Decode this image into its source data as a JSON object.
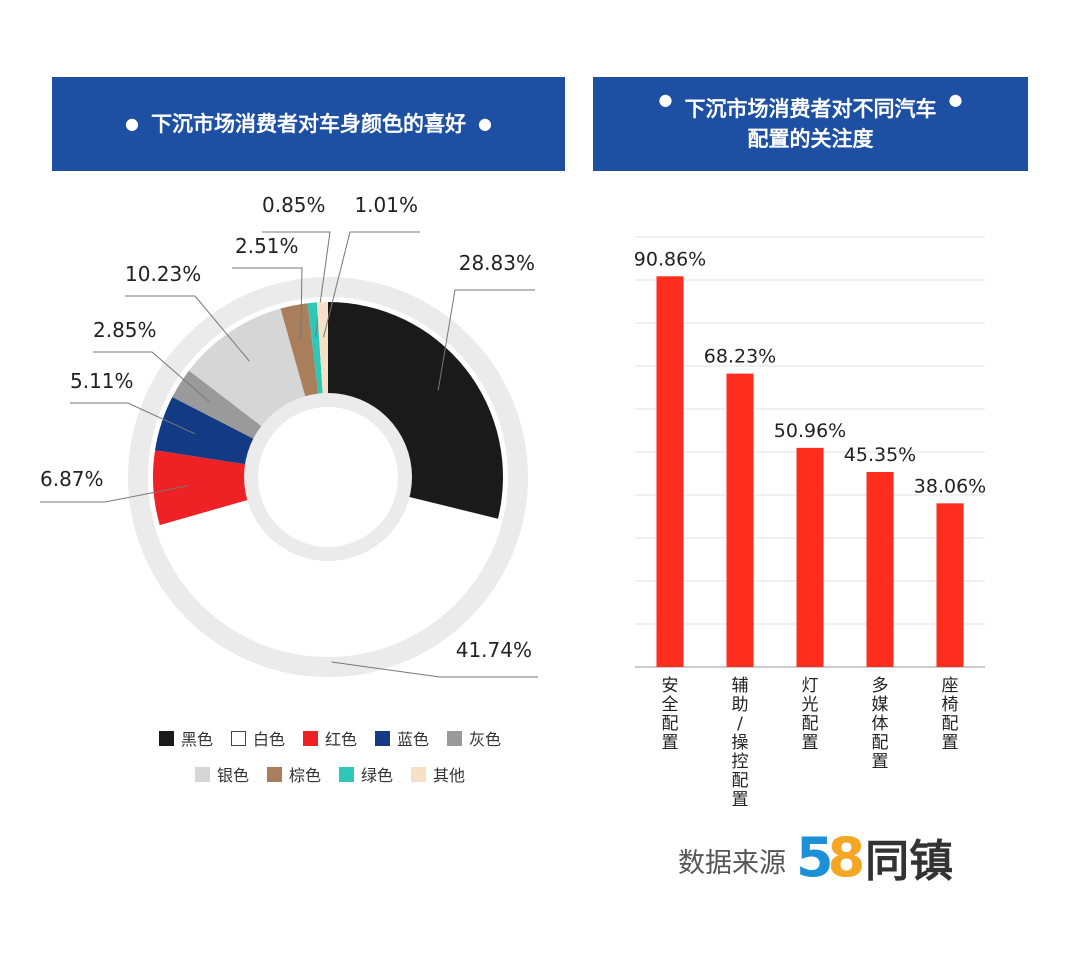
{
  "colors": {
    "banner": "#1d4fa3",
    "bar": "#ff2d1e"
  },
  "left_panel": {
    "title": "下沉市场消费者对车身颜色的喜好",
    "bullet": "●"
  },
  "right_panel": {
    "title_line1": "下沉市场消费者对不同汽车",
    "title_line2": "配置的关注度",
    "bullet": "●"
  },
  "legend": [
    {
      "label": "黑色",
      "color": "#1a1a1a"
    },
    {
      "label": "白色",
      "color": "#ffffff"
    },
    {
      "label": "红色",
      "color": "#ee2124"
    },
    {
      "label": "蓝色",
      "color": "#123a85"
    },
    {
      "label": "灰色",
      "color": "#9a9a9a"
    },
    {
      "label": "银色",
      "color": "#d6d6d6"
    },
    {
      "label": "棕色",
      "color": "#a87e5c"
    },
    {
      "label": "绿色",
      "color": "#2fc7b7"
    },
    {
      "label": "其他",
      "color": "#f6e1c6"
    }
  ],
  "source": {
    "label": "数据来源",
    "logo_5": "5",
    "logo_8": "8",
    "logo_text": "同镇"
  },
  "chart_data": [
    {
      "type": "pie",
      "title": "下沉市场消费者对车身颜色的喜好",
      "slices": [
        {
          "name": "黑色",
          "value": 28.83,
          "label": "28.83%",
          "color": "#1a1a1a"
        },
        {
          "name": "白色",
          "value": 41.74,
          "label": "41.74%",
          "color": "#ffffff"
        },
        {
          "name": "红色",
          "value": 6.87,
          "label": "6.87%",
          "color": "#ee2124"
        },
        {
          "name": "蓝色",
          "value": 5.11,
          "label": "5.11%",
          "color": "#123a85"
        },
        {
          "name": "灰色",
          "value": 2.85,
          "label": "2.85%",
          "color": "#9a9a9a"
        },
        {
          "name": "银色",
          "value": 10.23,
          "label": "10.23%",
          "color": "#d6d6d6"
        },
        {
          "name": "棕色",
          "value": 2.51,
          "label": "2.51%",
          "color": "#a87e5c"
        },
        {
          "name": "绿色",
          "value": 0.85,
          "label": "0.85%",
          "color": "#2fc7b7"
        },
        {
          "name": "其他",
          "value": 1.01,
          "label": "1.01%",
          "color": "#f6e1c6"
        }
      ],
      "ring_color": "#ebebeb"
    },
    {
      "type": "bar",
      "title": "下沉市场消费者对不同汽车配置的关注度",
      "categories": [
        "安全配置",
        "辅助/操控配置",
        "灯光配置",
        "多媒体配置",
        "座椅配置"
      ],
      "values": [
        90.86,
        68.23,
        50.96,
        45.35,
        38.06
      ],
      "labels": [
        "90.86%",
        "68.23%",
        "50.96%",
        "45.35%",
        "38.06%"
      ],
      "ylim": [
        0,
        100
      ],
      "grid": true
    }
  ]
}
